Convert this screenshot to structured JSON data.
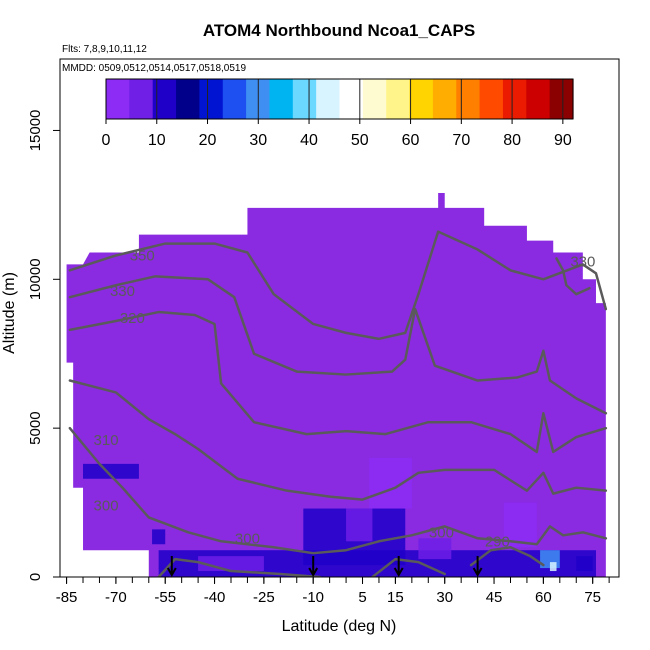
{
  "chart_data": {
    "type": "heatmap",
    "title": "ATOM4 Northbound Ncoa1_CAPS",
    "flights_note": "Flts: 7,8,9,10,11,12",
    "dates_note": "MMDD: 0509,0512,0514,0517,0518,0519",
    "xlabel": "Latitude (deg N)",
    "ylabel": "Altitude (m)",
    "xlim": [
      -87,
      83
    ],
    "ylim": [
      0,
      17400
    ],
    "x_ticks": [
      -85,
      -70,
      -55,
      -40,
      -25,
      -10,
      5,
      15,
      30,
      45,
      60,
      75
    ],
    "y_ticks": [
      0,
      5000,
      10000,
      15000
    ],
    "colorbar": {
      "range": [
        0,
        92
      ],
      "ticks": [
        0,
        10,
        20,
        30,
        40,
        50,
        60,
        70,
        80,
        90
      ],
      "colors": [
        "#8c2cf5",
        "#6f1fe6",
        "#1f00c8",
        "#00008b",
        "#0014d2",
        "#1e4ff0",
        "#3f8ff2",
        "#00b4f2",
        "#6ad8ff",
        "#d8f4ff",
        "#ffffff",
        "#fffbd0",
        "#fff48a",
        "#ffd400",
        "#ffad00",
        "#ff8000",
        "#ff4a00",
        "#ea1b00",
        "#cc0000",
        "#8b0000"
      ]
    },
    "background_color": "#8a2be2",
    "contour_color": "#5a5a5a",
    "coverage_top_profile": [
      [
        -85,
        10500
      ],
      [
        -80,
        10500
      ],
      [
        -78,
        10900
      ],
      [
        -63,
        10900
      ],
      [
        -63,
        11500
      ],
      [
        -30,
        11500
      ],
      [
        -30,
        12400
      ],
      [
        28,
        12400
      ],
      [
        28,
        12900
      ],
      [
        30,
        12900
      ],
      [
        30,
        12400
      ],
      [
        42,
        12400
      ],
      [
        42,
        11800
      ],
      [
        55,
        11800
      ],
      [
        55,
        11300
      ],
      [
        63,
        11300
      ],
      [
        63,
        10900
      ],
      [
        72,
        10900
      ],
      [
        72,
        10000
      ],
      [
        76,
        10000
      ],
      [
        76,
        9200
      ],
      [
        79,
        9200
      ],
      [
        79,
        1200
      ]
    ],
    "coverage_bottom_profile": [
      [
        -85,
        10500
      ],
      [
        -85,
        7200
      ],
      [
        -83,
        7200
      ],
      [
        -83,
        3000
      ],
      [
        -80,
        3000
      ],
      [
        -80,
        900
      ],
      [
        -60,
        900
      ],
      [
        -60,
        0
      ],
      [
        79,
        0
      ]
    ],
    "concentration_patches": [
      {
        "lat": [
          -57,
          76
        ],
        "alt": [
          0,
          900
        ],
        "value": 12
      },
      {
        "lat": [
          -45,
          -25
        ],
        "alt": [
          200,
          700
        ],
        "value": 8
      },
      {
        "lat": [
          -13,
          18
        ],
        "alt": [
          400,
          2300
        ],
        "value": 10
      },
      {
        "lat": [
          0,
          8
        ],
        "alt": [
          1200,
          2300
        ],
        "value": 6
      },
      {
        "lat": [
          -80,
          -63
        ],
        "alt": [
          3300,
          3800
        ],
        "value": 11
      },
      {
        "lat": [
          -59,
          -55
        ],
        "alt": [
          1100,
          1600
        ],
        "value": 12
      },
      {
        "lat": [
          7,
          20
        ],
        "alt": [
          2300,
          4000
        ],
        "value": 4
      },
      {
        "lat": [
          59,
          65
        ],
        "alt": [
          300,
          900
        ],
        "value": 30
      },
      {
        "lat": [
          62,
          64
        ],
        "alt": [
          200,
          500
        ],
        "value": 45
      },
      {
        "lat": [
          22,
          32
        ],
        "alt": [
          600,
          1300
        ],
        "value": 6
      },
      {
        "lat": [
          48,
          58
        ],
        "alt": [
          1000,
          2500
        ],
        "value": 3
      },
      {
        "lat": [
          70,
          75
        ],
        "alt": [
          200,
          700
        ],
        "value": 10
      }
    ],
    "contours": [
      {
        "label": "350",
        "label_at": [
          -62,
          10800
        ],
        "points": [
          [
            -84,
            10300
          ],
          [
            -70,
            10800
          ],
          [
            -55,
            11200
          ],
          [
            -40,
            11200
          ],
          [
            -30,
            10900
          ],
          [
            -22,
            9500
          ],
          [
            -10,
            8500
          ],
          [
            0,
            8200
          ],
          [
            10,
            8000
          ],
          [
            18,
            8200
          ],
          [
            22,
            9500
          ],
          [
            28,
            11600
          ],
          [
            40,
            11000
          ],
          [
            50,
            10300
          ],
          [
            60,
            10000
          ],
          [
            72,
            10500
          ],
          [
            76,
            10200
          ],
          [
            79,
            9000
          ]
        ]
      },
      {
        "label": "330",
        "label_at": [
          -68,
          9600
        ],
        "points": [
          [
            -84,
            9400
          ],
          [
            -70,
            9800
          ],
          [
            -58,
            10100
          ],
          [
            -42,
            10000
          ],
          [
            -34,
            9400
          ],
          [
            -28,
            7500
          ],
          [
            -15,
            6900
          ],
          [
            0,
            6800
          ],
          [
            14,
            6900
          ],
          [
            18,
            7300
          ],
          [
            21,
            9000
          ],
          [
            27,
            7100
          ],
          [
            40,
            6600
          ],
          [
            52,
            6700
          ],
          [
            58,
            6900
          ],
          [
            60,
            7600
          ],
          [
            62,
            6600
          ],
          [
            70,
            6000
          ],
          [
            79,
            5500
          ]
        ]
      },
      {
        "label": "330",
        "label_at": [
          72,
          10600
        ],
        "points": [
          [
            64,
            10700
          ],
          [
            66,
            10300
          ],
          [
            67,
            9800
          ],
          [
            70,
            9500
          ],
          [
            74,
            9700
          ]
        ]
      },
      {
        "label": "320",
        "label_at": [
          -65,
          8700
        ],
        "points": [
          [
            -84,
            8300
          ],
          [
            -70,
            8600
          ],
          [
            -57,
            8900
          ],
          [
            -46,
            8800
          ],
          [
            -40,
            8500
          ],
          [
            -38,
            6500
          ],
          [
            -28,
            5200
          ],
          [
            -12,
            4800
          ],
          [
            0,
            4900
          ],
          [
            12,
            4800
          ],
          [
            25,
            5200
          ],
          [
            38,
            5200
          ],
          [
            50,
            4800
          ],
          [
            58,
            4200
          ],
          [
            60,
            5500
          ],
          [
            63,
            4200
          ],
          [
            70,
            4700
          ],
          [
            79,
            5000
          ]
        ]
      },
      {
        "label": "310",
        "label_at": [
          -73,
          4600
        ],
        "points": [
          [
            -84,
            6600
          ],
          [
            -70,
            6200
          ],
          [
            -60,
            5300
          ],
          [
            -52,
            4800
          ],
          [
            -45,
            4300
          ],
          [
            -33,
            3300
          ],
          [
            -18,
            2900
          ],
          [
            -5,
            2700
          ],
          [
            5,
            2600
          ],
          [
            15,
            3000
          ],
          [
            22,
            3500
          ],
          [
            30,
            3600
          ],
          [
            45,
            3600
          ],
          [
            55,
            2900
          ],
          [
            60,
            3500
          ],
          [
            63,
            2800
          ],
          [
            70,
            3000
          ],
          [
            79,
            2900
          ]
        ]
      },
      {
        "label": "300",
        "label_at": [
          -73,
          2400
        ],
        "points": [
          [
            -84,
            5000
          ],
          [
            -75,
            3800
          ],
          [
            -68,
            3000
          ],
          [
            -60,
            2000
          ],
          [
            -48,
            1500
          ],
          [
            -38,
            1200
          ],
          [
            -22,
            1000
          ],
          [
            -10,
            800
          ],
          [
            0,
            900
          ],
          [
            10,
            1200
          ],
          [
            20,
            1400
          ],
          [
            30,
            1700
          ],
          [
            40,
            1300
          ],
          [
            50,
            1200
          ],
          [
            58,
            1100
          ],
          [
            62,
            1700
          ],
          [
            66,
            1400
          ],
          [
            72,
            1500
          ],
          [
            79,
            1300
          ]
        ]
      },
      {
        "label": "300",
        "label_at": [
          -30,
          1300
        ],
        "points": []
      },
      {
        "label": "300",
        "label_at": [
          29,
          1500
        ],
        "points": []
      },
      {
        "label": "290",
        "label_at": [
          46,
          1200
        ],
        "points": [
          [
            38,
            400
          ],
          [
            44,
            900
          ],
          [
            50,
            1000
          ],
          [
            56,
            700
          ],
          [
            60,
            400
          ]
        ]
      },
      {
        "label": "",
        "label_at": null,
        "points": [
          [
            -57,
            0
          ],
          [
            -52,
            600
          ],
          [
            -45,
            500
          ],
          [
            -35,
            200
          ],
          [
            -20,
            100
          ],
          [
            -8,
            0
          ]
        ]
      },
      {
        "label": "",
        "label_at": null,
        "points": [
          [
            8,
            0
          ],
          [
            15,
            600
          ],
          [
            22,
            500
          ],
          [
            30,
            100
          ]
        ]
      }
    ],
    "flight_markers_lat": [
      -53,
      -10,
      16,
      40
    ]
  }
}
